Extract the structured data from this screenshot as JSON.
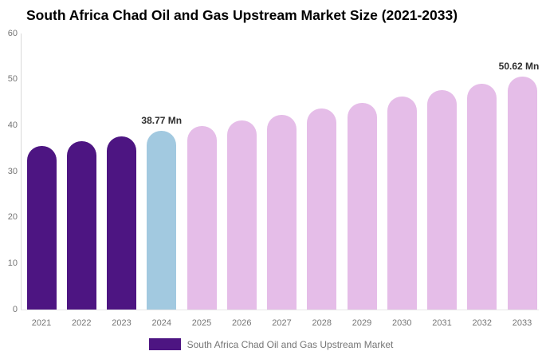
{
  "title": "South Africa Chad Oil and Gas Upstream Market Size (2021-2033)",
  "legend": {
    "label": "South Africa Chad Oil and Gas Upstream Market",
    "swatch_color": "#4D1582"
  },
  "colors": {
    "historical": "#4D1582",
    "base_year": "#A2C9E0",
    "forecast": "#E5BDE8",
    "axis_line": "#d9d9d9",
    "tick_text": "#757575",
    "data_label_text": "#2e2e2e",
    "title_text": "#000000",
    "background": "#ffffff"
  },
  "chart_data": {
    "type": "bar",
    "title": "South Africa Chad Oil and Gas Upstream Market Size (2021-2033)",
    "xlabel": "",
    "ylabel": "",
    "unit": "Mn",
    "categories": [
      "2021",
      "2022",
      "2023",
      "2024",
      "2025",
      "2026",
      "2027",
      "2028",
      "2029",
      "2030",
      "2031",
      "2032",
      "2033"
    ],
    "values": [
      35.48,
      36.55,
      37.65,
      38.77,
      39.94,
      41.14,
      42.38,
      43.65,
      44.96,
      46.31,
      47.7,
      49.14,
      50.62
    ],
    "bar_colors": [
      "#4D1582",
      "#4D1582",
      "#4D1582",
      "#A2C9E0",
      "#E5BDE8",
      "#E5BDE8",
      "#E5BDE8",
      "#E5BDE8",
      "#E5BDE8",
      "#E5BDE8",
      "#E5BDE8",
      "#E5BDE8",
      "#E5BDE8"
    ],
    "data_labels": {
      "2024": "38.77 Mn",
      "2033": "50.62 Mn"
    },
    "ylim": [
      0,
      60
    ],
    "yticks": [
      0,
      10,
      20,
      30,
      40,
      50,
      60
    ],
    "grid": false,
    "legend_position": "bottom",
    "series_name": "South Africa Chad Oil and Gas Upstream Market"
  }
}
